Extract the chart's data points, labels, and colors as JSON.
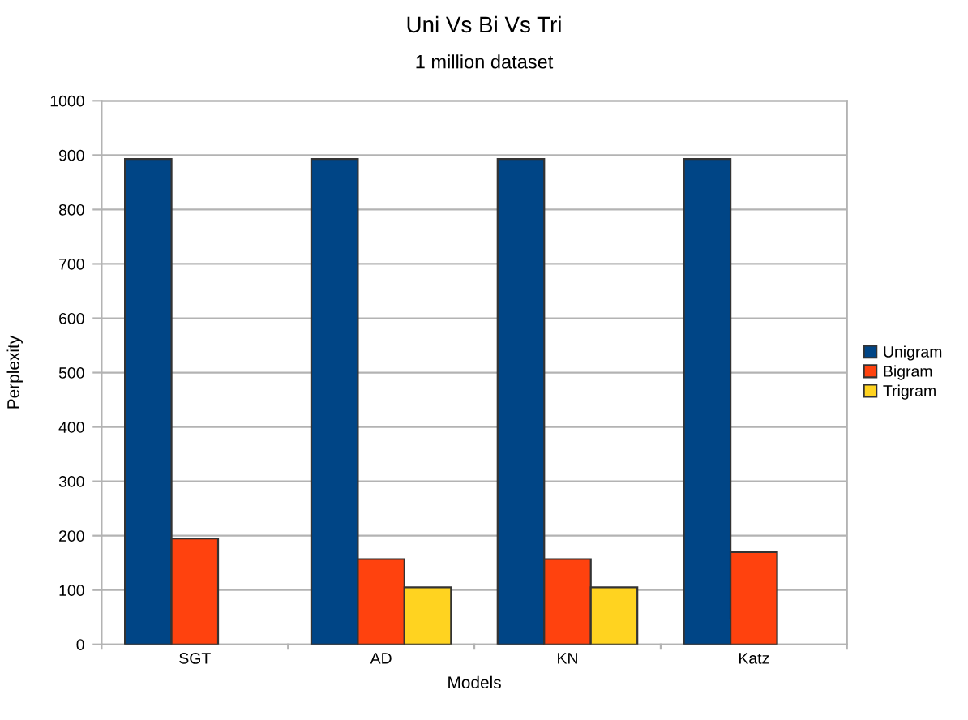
{
  "chart_data": {
    "type": "bar",
    "title": "Uni Vs Bi Vs Tri",
    "subtitle": "1 million dataset",
    "xlabel": "Models",
    "ylabel": "Perplexity",
    "categories": [
      "SGT",
      "AD",
      "KN",
      "Katz"
    ],
    "series": [
      {
        "name": "Unigram",
        "color": "#004586",
        "values": [
          893,
          893,
          893,
          893
        ]
      },
      {
        "name": "Bigram",
        "color": "#ff420e",
        "values": [
          195,
          157,
          157,
          170
        ]
      },
      {
        "name": "Trigram",
        "color": "#ffd320",
        "values": [
          null,
          105,
          105,
          null
        ]
      }
    ],
    "ylim": [
      0,
      1000
    ],
    "yticks": [
      0,
      100,
      200,
      300,
      400,
      500,
      600,
      700,
      800,
      900,
      1000
    ],
    "grid": "y",
    "legend": "right"
  }
}
